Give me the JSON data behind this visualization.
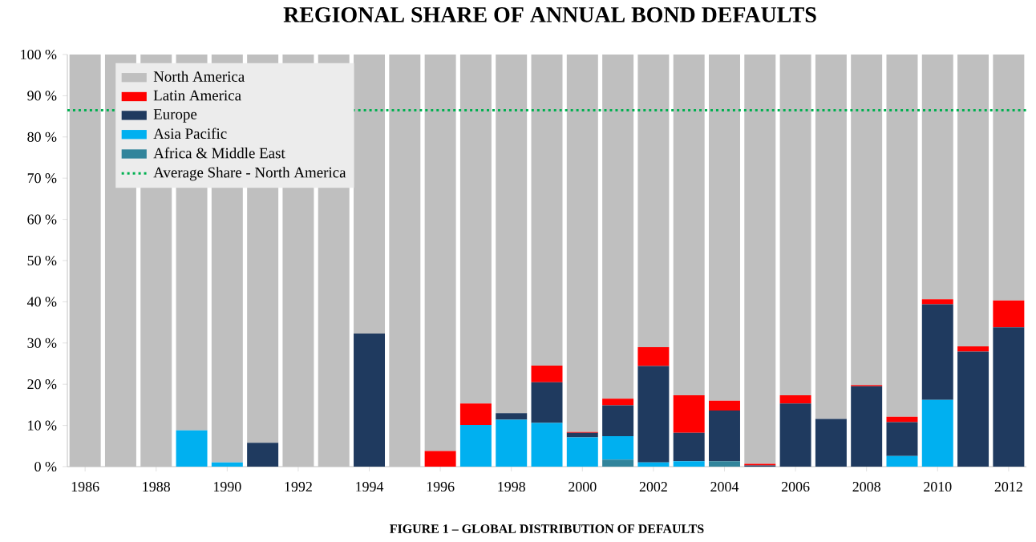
{
  "chart_data": {
    "type": "bar",
    "stacked": true,
    "title": "REGIONAL SHARE OF ANNUAL BOND DEFAULTS",
    "annotations": [
      "FIGURE 1 – GLOBAL DISTRIBUTION OF DEFAULTS"
    ],
    "categories": [
      "1986",
      null,
      "1988",
      null,
      "1990",
      null,
      "1992",
      null,
      "1994",
      null,
      "1996",
      null,
      "1998",
      null,
      "2000",
      null,
      "2002",
      null,
      "2004",
      null,
      "2006",
      null,
      "2008",
      null,
      "2010",
      null,
      "2012"
    ],
    "series": [
      {
        "name": "Africa & Middle East",
        "color": "#31849b",
        "values": [
          0,
          0,
          0,
          0,
          0,
          0,
          0,
          0,
          0,
          0,
          0,
          0,
          0,
          0,
          0,
          1.7,
          0,
          0,
          1.3,
          0,
          0,
          0,
          0,
          0,
          0,
          0,
          0
        ]
      },
      {
        "name": "Asia Pacific",
        "color": "#00b0f0",
        "values": [
          0,
          0,
          0,
          8.8,
          1,
          0,
          0,
          0,
          0,
          0,
          0,
          10.1,
          11.4,
          10.6,
          7.1,
          5.7,
          1,
          1.3,
          0,
          0,
          0,
          0,
          0,
          2.6,
          16.2,
          0,
          0
        ]
      },
      {
        "name": "Europe",
        "color": "#1f3a5f",
        "values": [
          0,
          0,
          0,
          0,
          0,
          5.8,
          0,
          0,
          32.3,
          0,
          0,
          0,
          1.6,
          9.9,
          1.1,
          7.5,
          23.4,
          6.9,
          12.3,
          0.3,
          15.3,
          11.6,
          19.5,
          8.2,
          23.2,
          27.9,
          33.8
        ]
      },
      {
        "name": "Latin America",
        "color": "#ff0000",
        "values": [
          0,
          0,
          0,
          0,
          0,
          0,
          0,
          0,
          0,
          0,
          3.8,
          5.2,
          0,
          4,
          0.2,
          1.6,
          4.6,
          9.1,
          2.4,
          0.4,
          2,
          0,
          0.3,
          1.3,
          1.2,
          1.3,
          6.5
        ]
      },
      {
        "name": "North America",
        "color": "#bfbfbf",
        "values": [
          100,
          100,
          100,
          91.2,
          99,
          94.2,
          100,
          100,
          67.7,
          100,
          96.2,
          84.7,
          87,
          75.5,
          91.6,
          83.5,
          71,
          82.7,
          84,
          99.3,
          82.7,
          88.4,
          80.2,
          87.9,
          59.4,
          70.8,
          59.7
        ]
      }
    ],
    "ylim": [
      0,
      100
    ],
    "yticks": [
      {
        "value": 0,
        "label": "0 %"
      },
      {
        "value": 10,
        "label": "10 %"
      },
      {
        "value": 20,
        "label": "20 %"
      },
      {
        "value": 30,
        "label": "30 %"
      },
      {
        "value": 40,
        "label": "40 %"
      },
      {
        "value": 50,
        "label": "50 %"
      },
      {
        "value": 60,
        "label": "60 %"
      },
      {
        "value": 70,
        "label": "70 %"
      },
      {
        "value": 80,
        "label": "80 %"
      },
      {
        "value": 90,
        "label": "90 %"
      },
      {
        "value": 100,
        "label": "100 %"
      }
    ],
    "ref_lines": [
      {
        "axis": "y",
        "value": 86.5,
        "label": "Average Share - North America",
        "color": "#00b050",
        "line_style": "dotted"
      }
    ],
    "legend": "top left",
    "grid": false
  }
}
